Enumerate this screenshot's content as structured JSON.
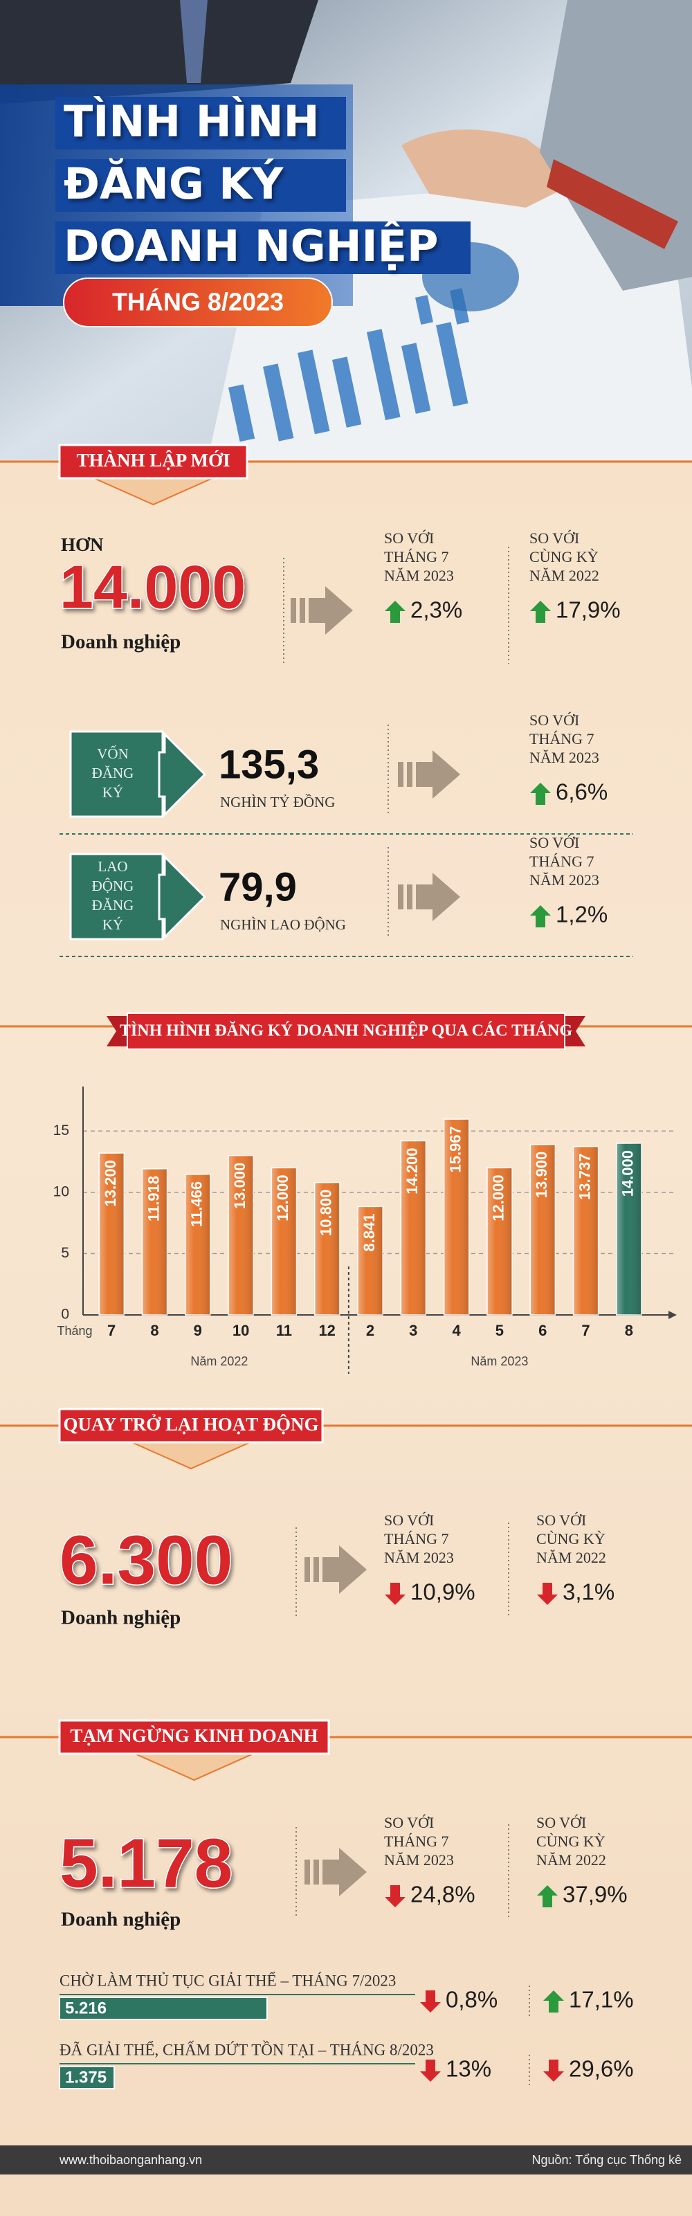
{
  "header": {
    "title_lines": [
      "TÌNH HÌNH",
      "ĐĂNG KÝ",
      "DOANH NGHIỆP"
    ],
    "period": "THÁNG 8/2023"
  },
  "new": {
    "label": "THÀNH LẬP MỚI",
    "prefix": "HƠN",
    "value": "14.000",
    "unit": "Doanh nghiệp",
    "comparisons": [
      {
        "lines": [
          "SO VỚI",
          "THÁNG 7",
          "NĂM 2023"
        ],
        "change": "2,3%",
        "direction": "up"
      },
      {
        "lines": [
          "SO VỚI",
          "CÙNG KỲ",
          "NĂM 2022"
        ],
        "change": "17,9%",
        "direction": "up"
      }
    ],
    "metrics": [
      {
        "box_lines": [
          "VỐN",
          "ĐĂNG",
          "KÝ"
        ],
        "value": "135,3",
        "unit": "NGHÌN TỶ ĐỒNG",
        "comparison": {
          "lines": [
            "SO VỚI",
            "THÁNG 7",
            "NĂM 2023"
          ],
          "change": "6,6%",
          "direction": "up"
        }
      },
      {
        "box_lines": [
          "LAO",
          "ĐỘNG",
          "ĐĂNG",
          "KÝ"
        ],
        "value": "79,9",
        "unit": "NGHÌN LAO ĐỘNG",
        "comparison": {
          "lines": [
            "SO VỚI",
            "THÁNG 7",
            "NĂM 2023"
          ],
          "change": "1,2%",
          "direction": "up"
        }
      }
    ]
  },
  "chart_data": {
    "type": "bar",
    "title": "TÌNH HÌNH ĐĂNG KÝ DOANH NGHIỆP QUA CÁC THÁNG",
    "x_label": "Tháng",
    "categories": [
      "7",
      "8",
      "9",
      "10",
      "11",
      "12",
      "2",
      "3",
      "4",
      "5",
      "6",
      "7",
      "8"
    ],
    "groups": [
      {
        "label": "Năm 2022",
        "span": 6
      },
      {
        "label": "Năm 2023",
        "span": 7
      }
    ],
    "values": [
      13.2,
      11.918,
      11.466,
      13.0,
      12.0,
      10.8,
      8.841,
      14.2,
      15.967,
      12.0,
      13.9,
      13.737,
      14.0
    ],
    "value_labels": [
      "13.200",
      "11.918",
      "11.466",
      "13.000",
      "12.000",
      "10.800",
      "8.841",
      "14.200",
      "15.967",
      "12.000",
      "13.900",
      "13.737",
      "14.000"
    ],
    "colors": [
      "#e8772e",
      "#e8772e",
      "#e8772e",
      "#e8772e",
      "#e8772e",
      "#e8772e",
      "#e8772e",
      "#e8772e",
      "#e8772e",
      "#e8772e",
      "#e8772e",
      "#e8772e",
      "#2e7562"
    ],
    "ylim": [
      0,
      17.5
    ],
    "yticks": [
      0,
      5,
      10,
      15
    ],
    "grid": true
  },
  "returned": {
    "label": "QUAY TRỞ LẠI HOẠT ĐỘNG",
    "value": "6.300",
    "unit": "Doanh nghiệp",
    "comparisons": [
      {
        "lines": [
          "SO VỚI",
          "THÁNG 7",
          "NĂM 2023"
        ],
        "change": "10,9%",
        "direction": "down"
      },
      {
        "lines": [
          "SO VỚI",
          "CÙNG KỲ",
          "NĂM 2022"
        ],
        "change": "3,1%",
        "direction": "down"
      }
    ]
  },
  "suspended": {
    "label": "TẠM NGỪNG KINH DOANH",
    "value": "5.178",
    "unit": "Doanh nghiệp",
    "comparisons": [
      {
        "lines": [
          "SO VỚI",
          "THÁNG 7",
          "NĂM 2023"
        ],
        "change": "24,8%",
        "direction": "down"
      },
      {
        "lines": [
          "SO VỚI",
          "CÙNG KỲ",
          "NĂM 2022"
        ],
        "change": "37,9%",
        "direction": "up"
      }
    ],
    "dissolution": [
      {
        "label": "CHỜ LÀM THỦ TỤC GIẢI THỂ – THÁNG 7/2023",
        "value": 5216,
        "value_label": "5.216",
        "changes": [
          {
            "change": "0,8%",
            "direction": "down"
          },
          {
            "change": "17,1%",
            "direction": "up"
          }
        ]
      },
      {
        "label": "ĐÃ GIẢI THỂ, CHẤM DỨT TỒN TẠI – THÁNG 8/2023",
        "value": 1375,
        "value_label": "1.375",
        "changes": [
          {
            "change": "13%",
            "direction": "down"
          },
          {
            "change": "29,6%",
            "direction": "down"
          }
        ]
      }
    ]
  },
  "footer": {
    "website": "www.thoibaonganhang.vn",
    "source": "Nguồn: Tổng cục Thống kê"
  }
}
